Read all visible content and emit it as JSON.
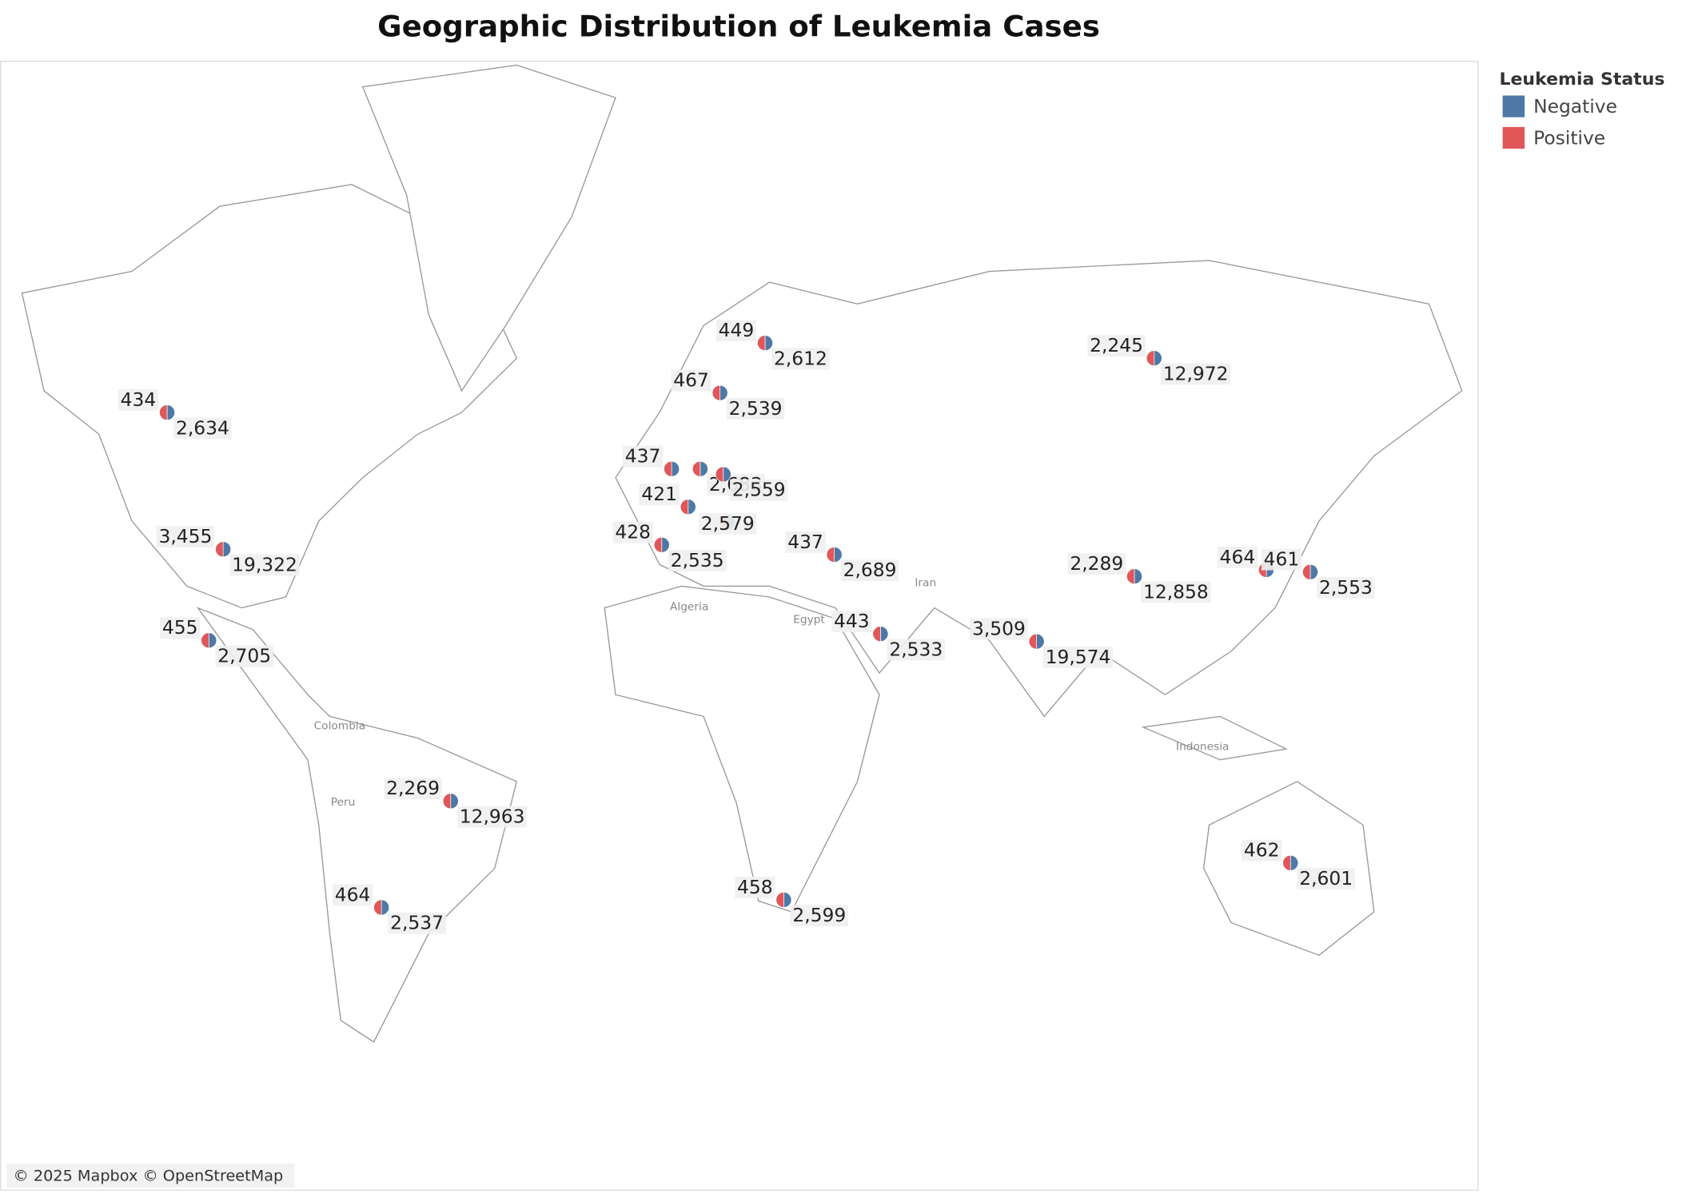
{
  "chart_data": {
    "type": "pie-map",
    "title": "Geographic Distribution of Leukemia Cases",
    "legend_title": "Leukemia Status",
    "series": [
      {
        "name": "Negative",
        "color": "#4e79a7"
      },
      {
        "name": "Positive",
        "color": "#e15759"
      }
    ],
    "map_labels": [
      "Algeria",
      "Egypt",
      "Iran",
      "Colombia",
      "Peru",
      "Indonesia"
    ],
    "attribution": "© 2025 Mapbox © OpenStreetMap",
    "locations": [
      {
        "shares": [
          50,
          50
        ],
        "values": [
          434,
          2634
        ],
        "value_labels": [
          "434",
          "2,634"
        ]
      },
      {
        "shares": [
          50,
          50
        ],
        "values": [
          3455,
          19322
        ],
        "value_labels": [
          "3,455",
          "19,322"
        ]
      },
      {
        "shares": [
          50,
          50
        ],
        "values": [
          455,
          2705
        ],
        "value_labels": [
          "455",
          "2,705"
        ]
      },
      {
        "shares": [
          50,
          50
        ],
        "values": [
          2269,
          12963
        ],
        "value_labels": [
          "2,269",
          "12,963"
        ]
      },
      {
        "shares": [
          50,
          50
        ],
        "values": [
          464,
          2537
        ],
        "value_labels": [
          "464",
          "2,537"
        ]
      },
      {
        "shares": [
          50,
          50
        ],
        "values": [
          449,
          2612
        ],
        "value_labels": [
          "449",
          "2,612"
        ]
      },
      {
        "shares": [
          50,
          50
        ],
        "values": [
          467,
          2539
        ],
        "value_labels": [
          "467",
          "2,539"
        ]
      },
      {
        "shares": [
          50,
          50
        ],
        "values": [
          437
        ],
        "value_labels": [
          "437"
        ]
      },
      {
        "shares": [
          50,
          50
        ],
        "values": [
          2683
        ],
        "value_labels": [
          "2,683"
        ]
      },
      {
        "shares": [
          50,
          50
        ],
        "values": [
          2559
        ],
        "value_labels": [
          "2,559"
        ]
      },
      {
        "shares": [
          50,
          50
        ],
        "values": [
          421
        ],
        "value_labels": [
          "421"
        ]
      },
      {
        "shares": [
          50,
          50
        ],
        "values": [
          2579
        ],
        "value_labels": [
          "2,579"
        ]
      },
      {
        "shares": [
          50,
          50
        ],
        "values": [
          428,
          2535
        ],
        "value_labels": [
          "428",
          "2,535"
        ]
      },
      {
        "shares": [
          50,
          50
        ],
        "values": [
          437,
          2689
        ],
        "value_labels": [
          "437",
          "2,689"
        ]
      },
      {
        "shares": [
          50,
          50
        ],
        "values": [
          443,
          2533
        ],
        "value_labels": [
          "443",
          "2,533"
        ]
      },
      {
        "shares": [
          50,
          50
        ],
        "values": [
          458,
          2599
        ],
        "value_labels": [
          "458",
          "2,599"
        ]
      },
      {
        "shares": [
          50,
          50
        ],
        "values": [
          2245,
          12972
        ],
        "value_labels": [
          "2,245",
          "12,972"
        ]
      },
      {
        "shares": [
          50,
          50
        ],
        "values": [
          2289,
          12858
        ],
        "value_labels": [
          "2,289",
          "12,858"
        ]
      },
      {
        "shares": [
          50,
          50
        ],
        "values": [
          3509,
          19574
        ],
        "value_labels": [
          "3,509",
          "19,574"
        ]
      },
      {
        "shares": [
          50,
          50
        ],
        "values": [
          464
        ],
        "value_labels": [
          "464"
        ]
      },
      {
        "shares": [
          50,
          50
        ],
        "values": [
          461,
          2553
        ],
        "value_labels": [
          "461",
          "2,553"
        ]
      },
      {
        "shares": [
          50,
          50
        ],
        "values": [
          462,
          2601
        ],
        "value_labels": [
          "462",
          "2,601"
        ]
      }
    ]
  }
}
